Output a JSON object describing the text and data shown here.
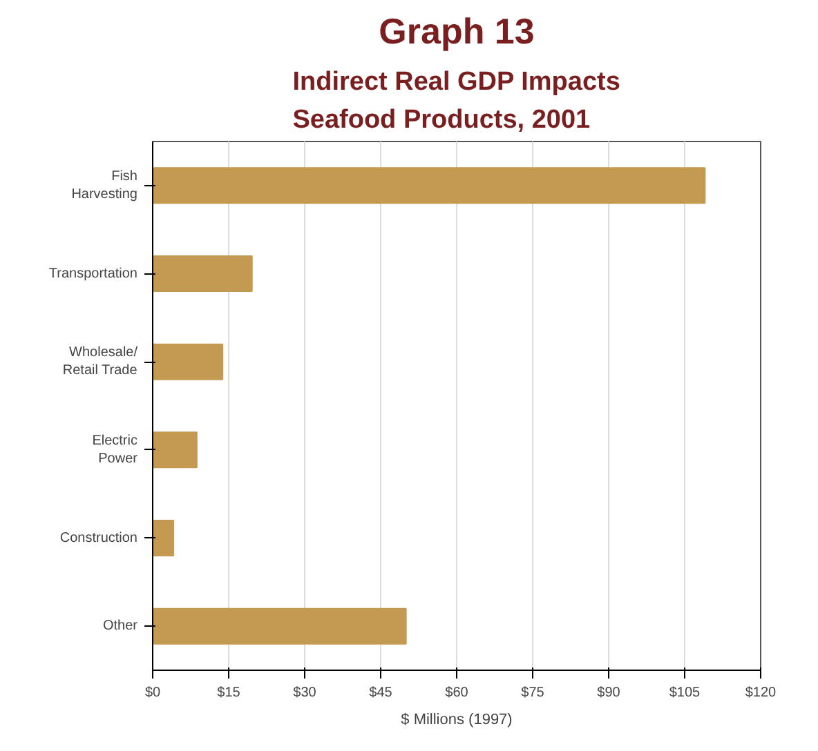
{
  "chart_data": {
    "type": "bar",
    "orientation": "horizontal",
    "title": "Graph 13",
    "subtitle": "Indirect Real GDP Impacts\nSeafood Products, 2001",
    "categories": [
      "Fish\nHarvesting",
      "Transportation",
      "Wholesale/\nRetail Trade",
      "Electric\nPower",
      "Construction",
      "Other"
    ],
    "values": [
      109,
      19.6,
      13.8,
      8.7,
      4.1,
      50
    ],
    "color": "#c49a52",
    "xlabel": "$ Millions (1997)",
    "xlim": [
      0,
      120
    ],
    "xticks": [
      {
        "value": 0,
        "label": "$0"
      },
      {
        "value": 15,
        "label": "$15"
      },
      {
        "value": 30,
        "label": "$30"
      },
      {
        "value": 45,
        "label": "$45"
      },
      {
        "value": 60,
        "label": "$60"
      },
      {
        "value": 75,
        "label": "$75"
      },
      {
        "value": 90,
        "label": "$90"
      },
      {
        "value": 105,
        "label": "$105"
      },
      {
        "value": 120,
        "label": "$120"
      }
    ],
    "grid": "x"
  }
}
